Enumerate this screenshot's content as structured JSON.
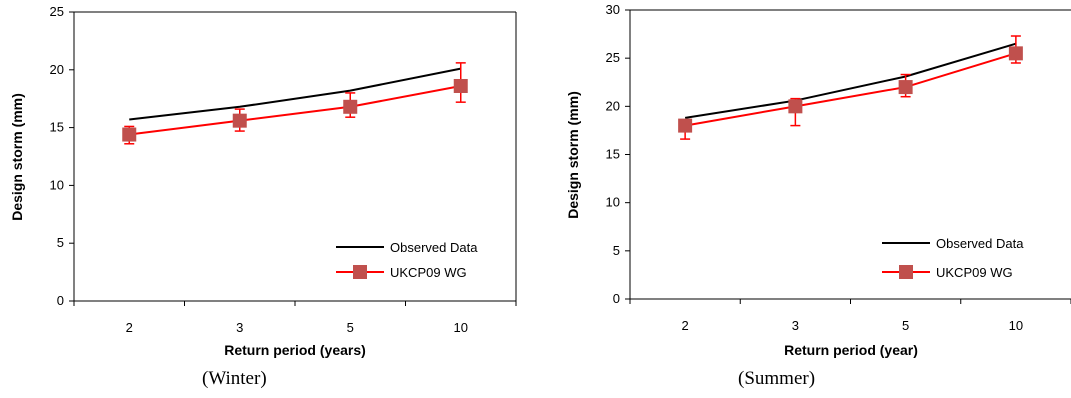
{
  "chart_data": [
    {
      "type": "line",
      "caption": "(Winter)",
      "categories": [
        "2",
        "3",
        "5",
        "10"
      ],
      "xlabel": "Return period (years)",
      "ylabel": "Design storm (mm)",
      "ylim": [
        0,
        25
      ],
      "yticks": [
        0,
        5,
        10,
        15,
        20,
        25
      ],
      "legend_position": "bottom-right",
      "series": [
        {
          "name": "Observed Data",
          "color": "#000000",
          "marker": "none",
          "values": [
            15.7,
            16.8,
            18.2,
            20.1
          ]
        },
        {
          "name": "UKCP09 WG",
          "color": "#ff0000",
          "marker": "square",
          "marker_color": "#c0504d",
          "values": [
            14.4,
            15.6,
            16.8,
            18.6
          ],
          "error_low": [
            13.6,
            14.7,
            15.9,
            17.2
          ],
          "error_high": [
            15.1,
            16.6,
            18.0,
            20.6
          ]
        }
      ]
    },
    {
      "type": "line",
      "caption": "(Summer)",
      "categories": [
        "2",
        "3",
        "5",
        "10"
      ],
      "xlabel": "Return period (year)",
      "ylabel": "Design storm (mm)",
      "ylim": [
        0,
        30
      ],
      "yticks": [
        0,
        5,
        10,
        15,
        20,
        25,
        30
      ],
      "legend_position": "bottom-right",
      "series": [
        {
          "name": "Observed Data",
          "color": "#000000",
          "marker": "none",
          "values": [
            18.8,
            20.6,
            23.1,
            26.5
          ]
        },
        {
          "name": "UKCP09 WG",
          "color": "#ff0000",
          "marker": "square",
          "marker_color": "#c0504d",
          "values": [
            18.0,
            20.0,
            22.0,
            25.5
          ],
          "error_low": [
            16.6,
            18.0,
            21.0,
            24.5
          ],
          "error_high": [
            18.6,
            20.8,
            23.3,
            27.3
          ]
        }
      ]
    }
  ]
}
